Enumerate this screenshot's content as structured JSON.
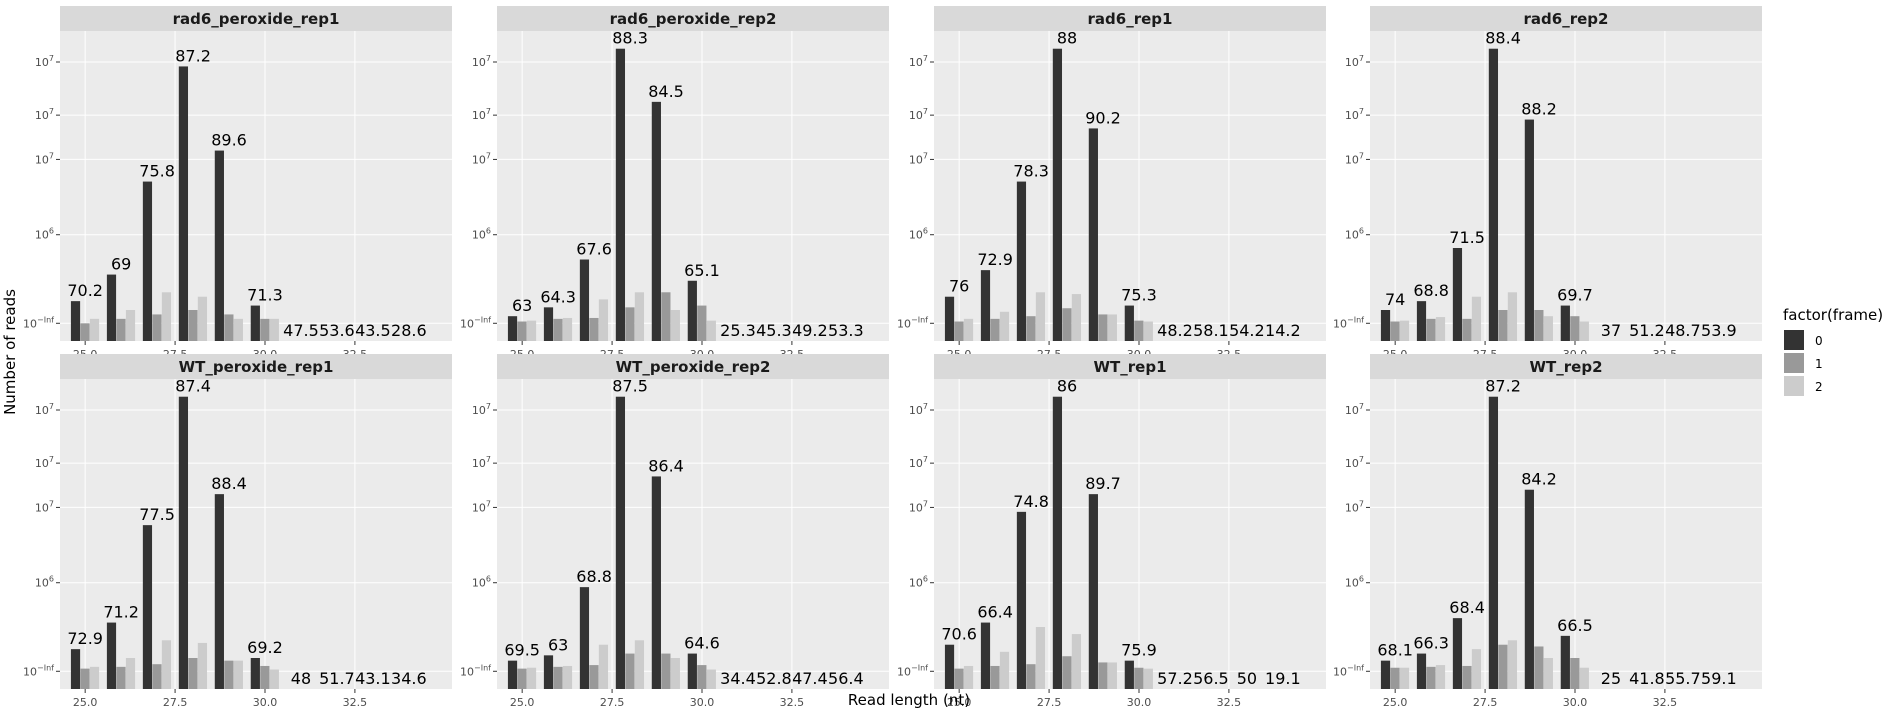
{
  "chart_data": {
    "type": "bar",
    "layout": "facet grid, 2 rows x 4 columns",
    "xlabel": "Read length (nt)",
    "ylabel": "Number of reads",
    "y_scale": "log10",
    "y_tick_labels": [
      "10^-Inf",
      "10^6",
      "10^7",
      "10^7",
      "10^7"
    ],
    "x_tick_labels": [
      "25.0",
      "27.5",
      "30.0",
      "32.5"
    ],
    "xlim": [
      24.3,
      35.2
    ],
    "legend": {
      "title": "factor(frame)",
      "position": "right",
      "entries": [
        "0",
        "1",
        "2"
      ]
    },
    "colors": {
      "0": "#333333",
      "1": "#999999",
      "2": "#cccccc",
      "panel": "#ebebeb",
      "strip": "#d9d9d9"
    },
    "grid": true,
    "bar_heights_note_units": "log10 of read count",
    "panels": [
      {
        "title": "rad6_peroxide_rep1",
        "x": [
          25,
          26,
          27,
          28,
          29,
          30,
          31,
          32,
          33,
          34
        ],
        "frame0": [
          5.25,
          5.55,
          6.6,
          7.9,
          6.95,
          5.2,
          0,
          0,
          0,
          0
        ],
        "frame1": [
          5.0,
          5.05,
          5.1,
          5.15,
          5.1,
          5.05,
          0,
          0,
          0,
          0
        ],
        "frame2": [
          5.05,
          5.15,
          5.35,
          5.3,
          5.05,
          5.05,
          0,
          0,
          0,
          0
        ],
        "labels": [
          "70.2",
          "69",
          "75.8",
          "87.2",
          "89.6",
          "71.3",
          "47.5",
          "53.6",
          "43.5",
          "28.6"
        ]
      },
      {
        "title": "rad6_peroxide_rep2",
        "x": [
          25,
          26,
          27,
          28,
          29,
          30,
          31,
          32,
          33,
          34
        ],
        "frame0": [
          5.08,
          5.18,
          5.72,
          8.1,
          7.5,
          5.48,
          0,
          0,
          0,
          0
        ],
        "frame1": [
          5.02,
          5.05,
          5.06,
          5.18,
          5.35,
          5.2,
          0,
          0,
          0,
          0
        ],
        "frame2": [
          5.03,
          5.06,
          5.27,
          5.35,
          5.15,
          5.03,
          0,
          0,
          0,
          0
        ],
        "labels": [
          "63",
          "64.3",
          "67.6",
          "88.3",
          "84.5",
          "65.1",
          "25.3",
          "45.3",
          "49.2",
          "53.3"
        ]
      },
      {
        "title": "rad6_rep1",
        "x": [
          25,
          26,
          27,
          28,
          29,
          30,
          31,
          32,
          33,
          34
        ],
        "frame0": [
          5.3,
          5.6,
          6.6,
          8.1,
          7.2,
          5.2,
          0,
          0,
          0,
          0
        ],
        "frame1": [
          5.02,
          5.05,
          5.08,
          5.17,
          5.1,
          5.03,
          0,
          0,
          0,
          0
        ],
        "frame2": [
          5.05,
          5.13,
          5.35,
          5.33,
          5.1,
          5.02,
          0,
          0,
          0,
          0
        ],
        "labels": [
          "76",
          "72.9",
          "78.3",
          "88",
          "90.2",
          "75.3",
          "48.2",
          "58.1",
          "54.2",
          "14.2"
        ]
      },
      {
        "title": "rad6_rep2",
        "x": [
          25,
          26,
          27,
          28,
          29,
          30,
          31,
          32,
          33,
          34
        ],
        "frame0": [
          5.15,
          5.25,
          5.85,
          8.1,
          7.3,
          5.2,
          0,
          0,
          0,
          0
        ],
        "frame1": [
          5.02,
          5.05,
          5.05,
          5.15,
          5.15,
          5.08,
          0,
          0,
          0,
          0
        ],
        "frame2": [
          5.03,
          5.07,
          5.3,
          5.35,
          5.08,
          5.02,
          0,
          0,
          0,
          0
        ],
        "labels": [
          "74",
          "68.8",
          "71.5",
          "88.4",
          "88.2",
          "69.7",
          "37",
          "51.2",
          "48.7",
          "53.9"
        ]
      },
      {
        "title": "WT_peroxide_rep1",
        "x": [
          25,
          26,
          27,
          28,
          29,
          30,
          31,
          32,
          33,
          34
        ],
        "frame0": [
          5.25,
          5.55,
          6.65,
          8.1,
          7.0,
          5.15,
          0,
          0,
          0,
          0
        ],
        "frame1": [
          5.03,
          5.05,
          5.08,
          5.15,
          5.12,
          5.06,
          0,
          0,
          0,
          0
        ],
        "frame2": [
          5.05,
          5.15,
          5.35,
          5.32,
          5.12,
          5.02,
          0,
          0,
          0,
          0
        ],
        "labels": [
          "72.9",
          "71.2",
          "77.5",
          "87.4",
          "88.4",
          "69.2",
          "48",
          "51.7",
          "43.1",
          "34.6"
        ]
      },
      {
        "title": "WT_peroxide_rep2",
        "x": [
          25,
          26,
          27,
          28,
          29,
          30,
          31,
          32,
          33,
          34
        ],
        "frame0": [
          5.12,
          5.18,
          5.95,
          8.1,
          7.2,
          5.2,
          0,
          0,
          0,
          0
        ],
        "frame1": [
          5.03,
          5.05,
          5.07,
          5.2,
          5.2,
          5.07,
          0,
          0,
          0,
          0
        ],
        "frame2": [
          5.04,
          5.06,
          5.3,
          5.35,
          5.15,
          5.02,
          0,
          0,
          0,
          0
        ],
        "labels": [
          "69.5",
          "63",
          "68.8",
          "87.5",
          "86.4",
          "64.6",
          "34.4",
          "52.8",
          "47.4",
          "56.4"
        ]
      },
      {
        "title": "WT_rep1",
        "x": [
          25,
          26,
          27,
          28,
          29,
          30,
          31,
          32,
          33,
          34
        ],
        "frame0": [
          5.3,
          5.55,
          6.8,
          8.1,
          7.0,
          5.12,
          0,
          0,
          0,
          0
        ],
        "frame1": [
          5.03,
          5.06,
          5.08,
          5.17,
          5.1,
          5.04,
          0,
          0,
          0,
          0
        ],
        "frame2": [
          5.06,
          5.22,
          5.5,
          5.42,
          5.1,
          5.03,
          0,
          0,
          0,
          0
        ],
        "labels": [
          "70.6",
          "66.4",
          "74.8",
          "86",
          "89.7",
          "75.9",
          "57.2",
          "56.5",
          "50",
          "19.1"
        ]
      },
      {
        "title": "WT_rep2",
        "x": [
          25,
          26,
          27,
          28,
          29,
          30,
          31,
          32,
          33,
          34
        ],
        "frame0": [
          5.12,
          5.2,
          5.6,
          8.1,
          7.05,
          5.4,
          0,
          0,
          0,
          0
        ],
        "frame1": [
          5.04,
          5.05,
          5.06,
          5.3,
          5.28,
          5.15,
          0,
          0,
          0,
          0
        ],
        "frame2": [
          5.04,
          5.07,
          5.25,
          5.35,
          5.15,
          5.04,
          0,
          0,
          0,
          0
        ],
        "labels": [
          "68.1",
          "66.3",
          "68.4",
          "87.2",
          "84.2",
          "66.5",
          "25",
          "41.8",
          "55.7",
          "59.1"
        ]
      }
    ]
  }
}
